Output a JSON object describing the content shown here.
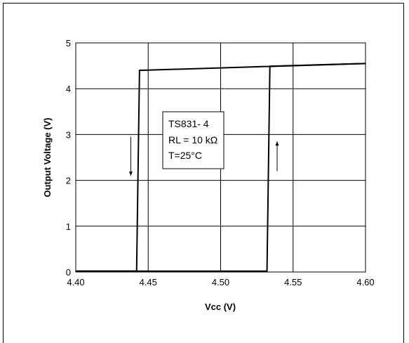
{
  "chart_data": {
    "type": "line",
    "xlabel": "Vcc (V)",
    "ylabel": "Output Voltage (V)",
    "xlim": [
      4.4,
      4.6
    ],
    "ylim": [
      0,
      5
    ],
    "xticks": [
      4.4,
      4.45,
      4.5,
      4.55,
      4.6
    ],
    "xtick_labels": [
      "4.40",
      "4.45",
      "4.50",
      "4.55",
      "4.60"
    ],
    "yticks": [
      0,
      1,
      2,
      3,
      4,
      5
    ],
    "ytick_labels": [
      "0",
      "1",
      "2",
      "3",
      "4",
      "5"
    ],
    "grid": true,
    "series": [
      {
        "name": "",
        "x": [
          4.4,
          4.442,
          4.444,
          4.6
        ],
        "y": [
          0.02,
          0.02,
          4.4,
          4.55
        ]
      },
      {
        "name": "",
        "x": [
          4.4,
          4.532,
          4.534,
          4.6
        ],
        "y": [
          0.02,
          0.02,
          4.49,
          4.55
        ]
      }
    ],
    "annotation": {
      "lines": [
        "TS831- 4",
        "RL = 10 kΩ",
        "T=25°C"
      ]
    },
    "arrows": [
      {
        "direction": "down",
        "x": 4.438,
        "y_from": 2.95,
        "y_to": 2.1
      },
      {
        "direction": "up",
        "x": 4.539,
        "y_from": 2.2,
        "y_to": 2.85
      }
    ]
  }
}
